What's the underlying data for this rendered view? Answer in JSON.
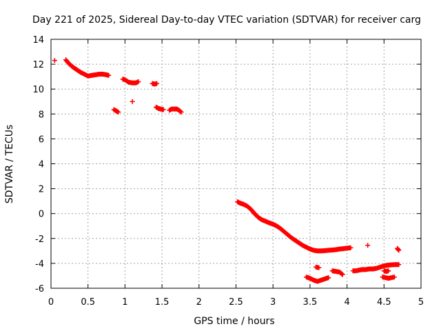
{
  "chart_data": {
    "type": "scatter",
    "title": "Day 221 of 2025, Sidereal Day-to-day VTEC variation (SDTVAR) for receiver carg",
    "xlabel": "GPS time / hours",
    "ylabel": "SDTVAR / TECUs",
    "xlim": [
      0,
      5
    ],
    "ylim": [
      -6,
      14
    ],
    "x_ticks": [
      0,
      0.5,
      1,
      1.5,
      2,
      2.5,
      3,
      3.5,
      4,
      4.5,
      5
    ],
    "x_tick_labels": [
      "0",
      "0.5",
      "1",
      "1.5",
      "2",
      "2.5",
      "3",
      "3.5",
      "4",
      "4.5",
      "5"
    ],
    "y_ticks": [
      -6,
      -4,
      -2,
      0,
      2,
      4,
      6,
      8,
      10,
      12,
      14
    ],
    "y_tick_labels": [
      "-6",
      "-4",
      "-2",
      "0",
      "2",
      "4",
      "6",
      "8",
      "10",
      "12",
      "14"
    ],
    "grid": true,
    "marker": "plus",
    "series_color": "#ff0000",
    "segments": [
      {
        "x": [
          0.05
        ],
        "y": [
          12.3
        ]
      },
      {
        "x": [
          0.2,
          0.25,
          0.3,
          0.35,
          0.4,
          0.45,
          0.5,
          0.55,
          0.6,
          0.65,
          0.7,
          0.75,
          0.78
        ],
        "y": [
          12.35,
          12.0,
          11.75,
          11.55,
          11.35,
          11.2,
          11.05,
          11.1,
          11.15,
          11.2,
          11.2,
          11.15,
          11.1
        ]
      },
      {
        "x": [
          0.85,
          0.88,
          0.91
        ],
        "y": [
          8.35,
          8.25,
          8.15
        ]
      },
      {
        "x": [
          0.97,
          1.0,
          1.05,
          1.1,
          1.15,
          1.18
        ],
        "y": [
          10.8,
          10.75,
          10.55,
          10.5,
          10.5,
          10.6
        ]
      },
      {
        "x": [
          1.1
        ],
        "y": [
          9.0
        ]
      },
      {
        "x": [
          1.37,
          1.4,
          1.43
        ],
        "y": [
          10.45,
          10.4,
          10.45
        ]
      },
      {
        "x": [
          1.42,
          1.45,
          1.48,
          1.52
        ],
        "y": [
          8.55,
          8.45,
          8.4,
          8.35
        ]
      },
      {
        "x": [
          1.6,
          1.63,
          1.67,
          1.7,
          1.73,
          1.76
        ],
        "y": [
          8.3,
          8.4,
          8.4,
          8.4,
          8.3,
          8.15
        ]
      },
      {
        "x": [
          2.52,
          2.55,
          2.6,
          2.65,
          2.7,
          2.75,
          2.8,
          2.85,
          2.9,
          2.95,
          3.0,
          3.05,
          3.1,
          3.15,
          3.2,
          3.25,
          3.3,
          3.35,
          3.4,
          3.45,
          3.5,
          3.55,
          3.6,
          3.65,
          3.7,
          3.75,
          3.8,
          3.85,
          3.9,
          3.95,
          4.0,
          4.05
        ],
        "y": [
          0.95,
          0.85,
          0.75,
          0.6,
          0.35,
          0.0,
          -0.3,
          -0.5,
          -0.62,
          -0.75,
          -0.85,
          -1.0,
          -1.2,
          -1.45,
          -1.7,
          -1.95,
          -2.15,
          -2.35,
          -2.55,
          -2.7,
          -2.85,
          -2.95,
          -3.0,
          -3.0,
          -2.98,
          -2.95,
          -2.93,
          -2.9,
          -2.85,
          -2.82,
          -2.78,
          -2.75
        ]
      },
      {
        "x": [
          3.58,
          3.62
        ],
        "y": [
          -4.3,
          -4.35
        ]
      },
      {
        "x": [
          3.45,
          3.5,
          3.55,
          3.6,
          3.65,
          3.7,
          3.75
        ],
        "y": [
          -5.1,
          -5.2,
          -5.35,
          -5.45,
          -5.35,
          -5.25,
          -5.15
        ]
      },
      {
        "x": [
          3.8,
          3.85,
          3.9,
          3.94
        ],
        "y": [
          -4.6,
          -4.65,
          -4.7,
          -4.9
        ]
      },
      {
        "x": [
          4.08,
          4.12,
          4.16,
          4.2,
          4.25,
          4.3,
          4.35,
          4.4,
          4.45,
          4.5,
          4.55,
          4.6,
          4.65,
          4.7
        ],
        "y": [
          -4.6,
          -4.6,
          -4.55,
          -4.5,
          -4.5,
          -4.45,
          -4.45,
          -4.4,
          -4.3,
          -4.2,
          -4.15,
          -4.12,
          -4.1,
          -4.1
        ]
      },
      {
        "x": [
          4.28
        ],
        "y": [
          -2.55
        ]
      },
      {
        "x": [
          4.5,
          4.53,
          4.56
        ],
        "y": [
          -4.6,
          -4.65,
          -4.6
        ]
      },
      {
        "x": [
          4.48,
          4.52,
          4.56,
          4.6,
          4.64
        ],
        "y": [
          -5.1,
          -5.15,
          -5.2,
          -5.15,
          -5.1
        ]
      },
      {
        "x": [
          4.68,
          4.7
        ],
        "y": [
          -2.8,
          -2.95
        ]
      }
    ]
  }
}
